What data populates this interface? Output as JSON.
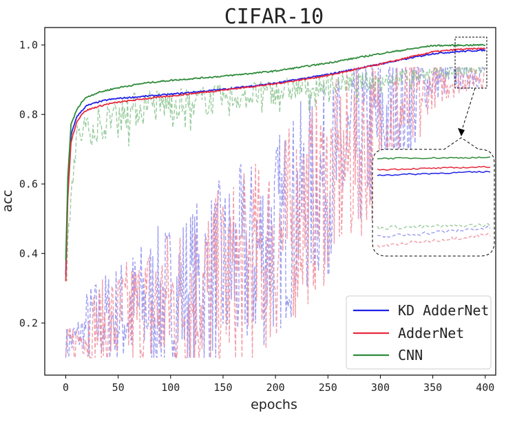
{
  "chart_data": {
    "type": "line",
    "title": "CIFAR-10",
    "xlabel": "epochs",
    "ylabel": "acc",
    "xlim": [
      -20,
      410
    ],
    "ylim": [
      0.05,
      1.05
    ],
    "xticks": [
      0,
      50,
      100,
      150,
      200,
      250,
      300,
      350,
      400
    ],
    "yticks": [
      0.2,
      0.4,
      0.6,
      0.8,
      1.0
    ],
    "xtick_labels": [
      "0",
      "50",
      "100",
      "150",
      "200",
      "250",
      "300",
      "350",
      "400"
    ],
    "ytick_labels": [
      "0.2",
      "0.4",
      "0.6",
      "0.8",
      "1.0"
    ],
    "legend_position": "lower-right",
    "series": [
      {
        "name": "KD AdderNet",
        "color": "#1f1fe8",
        "style": "solid",
        "role": "train",
        "x": [
          0,
          2,
          5,
          10,
          15,
          20,
          30,
          40,
          50,
          75,
          100,
          150,
          200,
          250,
          300,
          350,
          375,
          400
        ],
        "values": [
          0.34,
          0.58,
          0.74,
          0.79,
          0.81,
          0.825,
          0.835,
          0.842,
          0.846,
          0.852,
          0.858,
          0.872,
          0.89,
          0.915,
          0.945,
          0.975,
          0.981,
          0.985
        ]
      },
      {
        "name": "AdderNet",
        "color": "#e8283c",
        "style": "solid",
        "role": "train",
        "x": [
          0,
          2,
          5,
          10,
          15,
          20,
          30,
          40,
          50,
          75,
          100,
          150,
          200,
          250,
          300,
          350,
          375,
          400
        ],
        "values": [
          0.32,
          0.56,
          0.72,
          0.775,
          0.8,
          0.812,
          0.822,
          0.83,
          0.835,
          0.845,
          0.853,
          0.87,
          0.888,
          0.912,
          0.945,
          0.98,
          0.987,
          0.99
        ]
      },
      {
        "name": "CNN",
        "color": "#2e8b3a",
        "style": "solid",
        "role": "train",
        "x": [
          0,
          2,
          5,
          10,
          15,
          20,
          30,
          40,
          50,
          75,
          100,
          150,
          200,
          250,
          300,
          350,
          375,
          400
        ],
        "values": [
          0.38,
          0.62,
          0.77,
          0.81,
          0.835,
          0.85,
          0.862,
          0.87,
          0.877,
          0.89,
          0.898,
          0.91,
          0.925,
          0.948,
          0.975,
          0.998,
          0.999,
          1.0
        ]
      },
      {
        "name": "KD AdderNet (test)",
        "color": "#8c8cf0",
        "style": "dashed",
        "role": "test",
        "x": [
          0,
          10,
          25,
          50,
          75,
          100,
          125,
          150,
          175,
          200,
          225,
          250,
          275,
          300,
          325,
          350,
          375,
          400
        ],
        "values": [
          0.13,
          0.16,
          0.2,
          0.22,
          0.25,
          0.27,
          0.3,
          0.34,
          0.38,
          0.45,
          0.55,
          0.62,
          0.7,
          0.77,
          0.84,
          0.9,
          0.915,
          0.925
        ]
      },
      {
        "name": "AdderNet (test)",
        "color": "#f08c9a",
        "style": "dashed",
        "role": "test",
        "x": [
          0,
          10,
          25,
          50,
          75,
          100,
          125,
          150,
          175,
          200,
          225,
          250,
          275,
          300,
          325,
          350,
          375,
          400
        ],
        "values": [
          0.12,
          0.15,
          0.18,
          0.2,
          0.23,
          0.25,
          0.28,
          0.31,
          0.36,
          0.42,
          0.52,
          0.6,
          0.68,
          0.75,
          0.82,
          0.88,
          0.905,
          0.918
        ]
      },
      {
        "name": "CNN (test)",
        "color": "#8ac48e",
        "style": "dashed",
        "role": "test",
        "x": [
          0,
          5,
          10,
          15,
          25,
          50,
          75,
          100,
          150,
          200,
          250,
          300,
          350,
          375,
          400
        ],
        "values": [
          0.3,
          0.6,
          0.72,
          0.75,
          0.77,
          0.8,
          0.82,
          0.83,
          0.845,
          0.865,
          0.885,
          0.9,
          0.918,
          0.925,
          0.928
        ]
      }
    ]
  }
}
